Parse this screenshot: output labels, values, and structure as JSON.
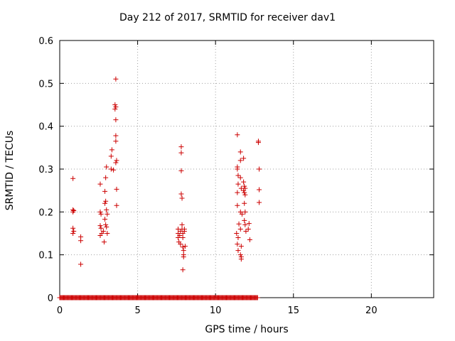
{
  "chart_data": {
    "type": "scatter",
    "title": "Day 212 of 2017, SRMTID for receiver dav1",
    "xlabel": "GPS time / hours",
    "ylabel": "SRMTID / TECUs",
    "xlim": [
      0,
      24
    ],
    "ylim": [
      0,
      0.6
    ],
    "xticks": [
      "0",
      "5",
      "10",
      "15",
      "20"
    ],
    "yticks": [
      "0",
      "0.1",
      "0.2",
      "0.3",
      "0.4",
      "0.5",
      "0.6"
    ],
    "grid": true,
    "marker": "+",
    "color": "#cc0000",
    "zero_line": {
      "x_start": 0.0,
      "x_end": 12.7,
      "step": 0.05,
      "y": 0
    },
    "series": [
      {
        "name": "SRMTID",
        "points": [
          [
            0.85,
            0.278
          ],
          [
            0.85,
            0.205
          ],
          [
            0.85,
            0.2
          ],
          [
            0.9,
            0.203
          ],
          [
            0.85,
            0.162
          ],
          [
            0.9,
            0.155
          ],
          [
            0.85,
            0.15
          ],
          [
            1.35,
            0.142
          ],
          [
            1.35,
            0.133
          ],
          [
            1.35,
            0.078
          ],
          [
            2.6,
            0.265
          ],
          [
            2.6,
            0.2
          ],
          [
            2.65,
            0.195
          ],
          [
            2.6,
            0.168
          ],
          [
            2.65,
            0.162
          ],
          [
            2.6,
            0.145
          ],
          [
            2.7,
            0.15
          ],
          [
            2.8,
            0.155
          ],
          [
            2.85,
            0.13
          ],
          [
            2.9,
            0.183
          ],
          [
            2.95,
            0.17
          ],
          [
            2.9,
            0.22
          ],
          [
            2.95,
            0.225
          ],
          [
            3.0,
            0.205
          ],
          [
            2.9,
            0.248
          ],
          [
            2.95,
            0.28
          ],
          [
            3.0,
            0.305
          ],
          [
            3.05,
            0.195
          ],
          [
            3.0,
            0.165
          ],
          [
            3.05,
            0.15
          ],
          [
            3.3,
            0.3
          ],
          [
            3.3,
            0.33
          ],
          [
            3.35,
            0.345
          ],
          [
            3.45,
            0.298
          ],
          [
            3.55,
            0.44
          ],
          [
            3.55,
            0.45
          ],
          [
            3.6,
            0.445
          ],
          [
            3.6,
            0.415
          ],
          [
            3.6,
            0.378
          ],
          [
            3.6,
            0.365
          ],
          [
            3.65,
            0.32
          ],
          [
            3.6,
            0.315
          ],
          [
            3.6,
            0.51
          ],
          [
            3.65,
            0.253
          ],
          [
            3.65,
            0.215
          ],
          [
            7.6,
            0.16
          ],
          [
            7.6,
            0.15
          ],
          [
            7.6,
            0.14
          ],
          [
            7.65,
            0.13
          ],
          [
            7.7,
            0.145
          ],
          [
            7.75,
            0.155
          ],
          [
            7.75,
            0.125
          ],
          [
            7.8,
            0.352
          ],
          [
            7.8,
            0.338
          ],
          [
            7.8,
            0.296
          ],
          [
            7.8,
            0.242
          ],
          [
            7.85,
            0.232
          ],
          [
            7.85,
            0.17
          ],
          [
            7.85,
            0.16
          ],
          [
            7.9,
            0.15
          ],
          [
            7.9,
            0.14
          ],
          [
            7.9,
            0.118
          ],
          [
            7.95,
            0.11
          ],
          [
            7.95,
            0.1
          ],
          [
            7.95,
            0.095
          ],
          [
            7.9,
            0.065
          ],
          [
            8.0,
            0.155
          ],
          [
            8.0,
            0.16
          ],
          [
            8.05,
            0.12
          ],
          [
            11.4,
            0.38
          ],
          [
            11.4,
            0.305
          ],
          [
            11.4,
            0.3
          ],
          [
            11.45,
            0.285
          ],
          [
            11.45,
            0.265
          ],
          [
            11.4,
            0.245
          ],
          [
            11.4,
            0.215
          ],
          [
            11.35,
            0.15
          ],
          [
            11.45,
            0.14
          ],
          [
            11.4,
            0.125
          ],
          [
            11.45,
            0.11
          ],
          [
            11.5,
            0.172
          ],
          [
            11.6,
            0.34
          ],
          [
            11.6,
            0.32
          ],
          [
            11.6,
            0.28
          ],
          [
            11.65,
            0.255
          ],
          [
            11.6,
            0.2
          ],
          [
            11.7,
            0.195
          ],
          [
            11.6,
            0.16
          ],
          [
            11.65,
            0.12
          ],
          [
            11.6,
            0.1
          ],
          [
            11.65,
            0.095
          ],
          [
            11.65,
            0.09
          ],
          [
            11.8,
            0.325
          ],
          [
            11.8,
            0.27
          ],
          [
            11.85,
            0.26
          ],
          [
            11.8,
            0.25
          ],
          [
            11.85,
            0.245
          ],
          [
            11.9,
            0.255
          ],
          [
            11.9,
            0.24
          ],
          [
            11.85,
            0.22
          ],
          [
            11.9,
            0.2
          ],
          [
            11.85,
            0.18
          ],
          [
            11.9,
            0.17
          ],
          [
            11.95,
            0.155
          ],
          [
            12.15,
            0.173
          ],
          [
            12.1,
            0.16
          ],
          [
            12.2,
            0.135
          ],
          [
            12.75,
            0.365
          ],
          [
            12.75,
            0.362
          ],
          [
            12.8,
            0.3
          ],
          [
            12.8,
            0.252
          ],
          [
            12.8,
            0.222
          ]
        ]
      }
    ]
  }
}
